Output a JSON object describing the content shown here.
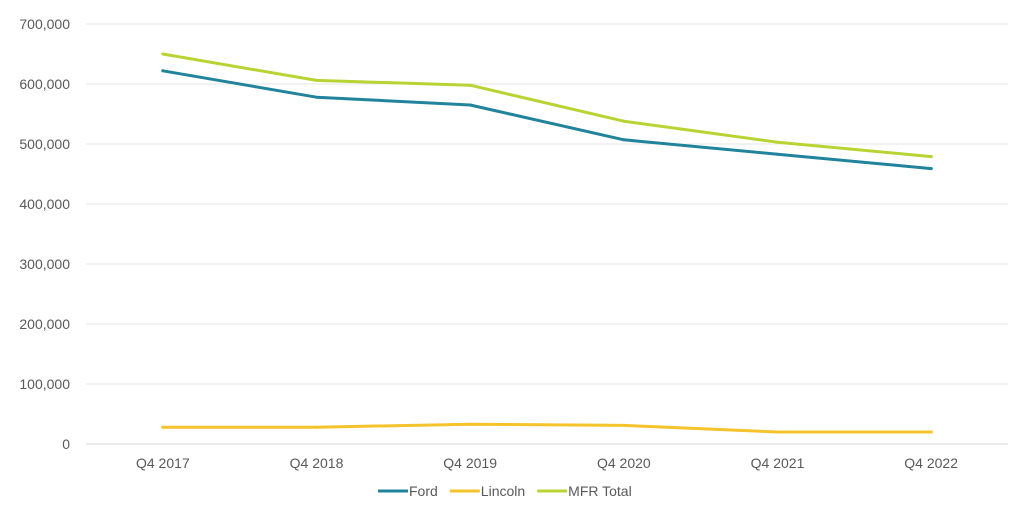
{
  "chart_data": {
    "type": "line",
    "categories": [
      "Q4 2017",
      "Q4 2018",
      "Q4 2019",
      "Q4 2020",
      "Q4 2021",
      "Q4 2022"
    ],
    "series": [
      {
        "name": "Ford",
        "color": "#21839c",
        "values": [
          622000,
          578000,
          565000,
          507000,
          483000,
          459000
        ]
      },
      {
        "name": "Lincoln",
        "color": "#f5c32c",
        "values": [
          28000,
          28000,
          33000,
          31000,
          20000,
          20000
        ]
      },
      {
        "name": "MFR Total",
        "color": "#b8d433",
        "values": [
          650000,
          606000,
          598000,
          538000,
          503000,
          479000
        ]
      }
    ],
    "ylim": [
      0,
      700000
    ],
    "yticks": [
      "0",
      "100,000",
      "200,000",
      "300,000",
      "400,000",
      "500,000",
      "600,000",
      "700,000"
    ],
    "grid": true,
    "legend_position": "bottom-center"
  }
}
